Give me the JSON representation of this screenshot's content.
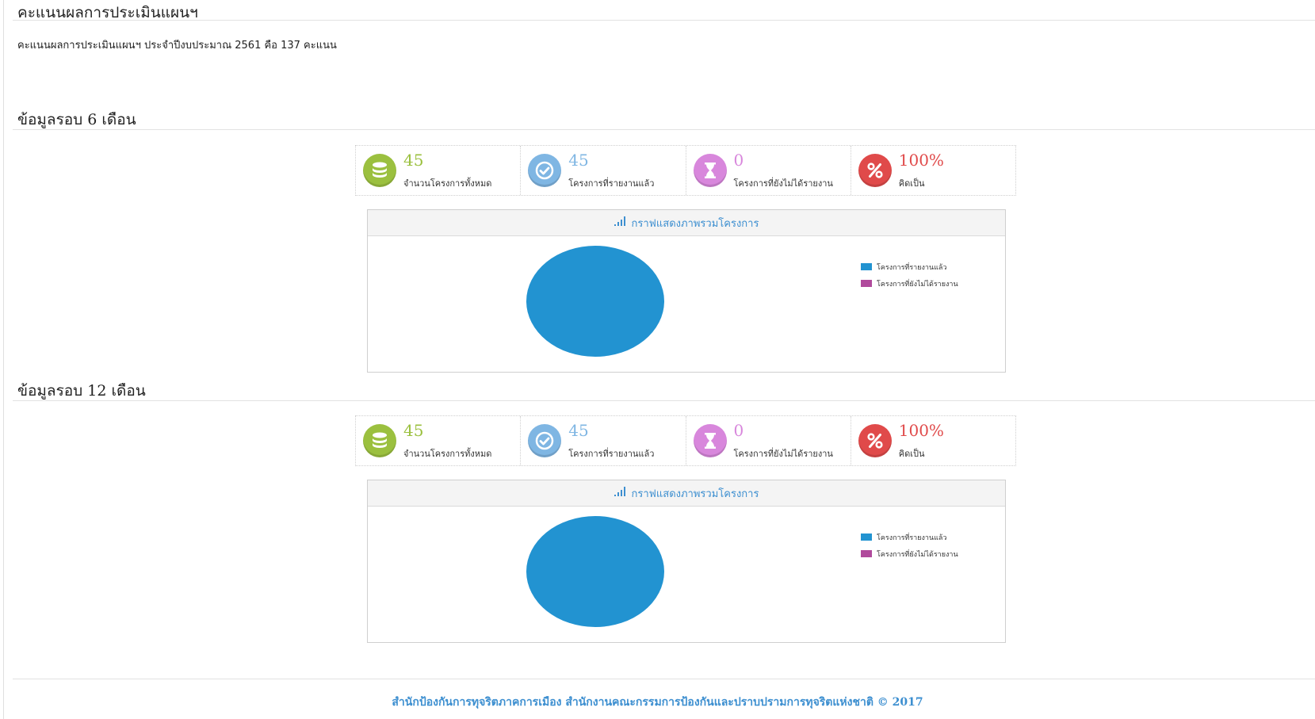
{
  "page_title": "คะแนนผลการประเมินแผนฯ",
  "score_text": "คะแนนผลการประเมินแผนฯ ประจำปีงบประมาณ 2561 คือ 137 คะแนน",
  "colors": {
    "green": "#9bc03f",
    "blue": "#7fb6e3",
    "violet": "#d887dc",
    "red": "#e04a4a",
    "pie": "#2293d1",
    "legend_reported": "#2293d1",
    "legend_unreported": "#b04a9c",
    "link": "#3d8fd0"
  },
  "sections": [
    {
      "title": "ข้อมูลรอบ 6 เดือน",
      "stats": [
        {
          "value": "45",
          "label": "จำนวนโครงการทั้งหมด",
          "icon": "database-icon"
        },
        {
          "value": "45",
          "label": "โครงการที่รายงานแล้ว",
          "icon": "check-icon"
        },
        {
          "value": "0",
          "label": "โครงการที่ยังไม่ได้รายงาน",
          "icon": "hourglass-icon"
        },
        {
          "value": "100%",
          "label": "คิดเป็น",
          "icon": "percent-icon"
        }
      ],
      "chart_title": "กราฟแสดงภาพรวมโครงการ",
      "chart_data": {
        "type": "pie",
        "title": "กราฟแสดงภาพรวมโครงการ",
        "categories": [
          "โครงการที่รายงานแล้ว",
          "โครงการที่ยังไม่ได้รายงาน"
        ],
        "values": [
          45,
          0
        ],
        "legend": "right"
      }
    },
    {
      "title": "ข้อมูลรอบ 12 เดือน",
      "stats": [
        {
          "value": "45",
          "label": "จำนวนโครงการทั้งหมด",
          "icon": "database-icon"
        },
        {
          "value": "45",
          "label": "โครงการที่รายงานแล้ว",
          "icon": "check-icon"
        },
        {
          "value": "0",
          "label": "โครงการที่ยังไม่ได้รายงาน",
          "icon": "hourglass-icon"
        },
        {
          "value": "100%",
          "label": "คิดเป็น",
          "icon": "percent-icon"
        }
      ],
      "chart_title": "กราฟแสดงภาพรวมโครงการ",
      "chart_data": {
        "type": "pie",
        "title": "กราฟแสดงภาพรวมโครงการ",
        "categories": [
          "โครงการที่รายงานแล้ว",
          "โครงการที่ยังไม่ได้รายงาน"
        ],
        "values": [
          45,
          0
        ],
        "legend": "right"
      }
    }
  ],
  "footer": "สำนักป้องกันการทุจริตภาคการเมือง สำนักงานคณะกรรมการป้องกันและปราบปรามการทุจริตแห่งชาติ © 2017"
}
